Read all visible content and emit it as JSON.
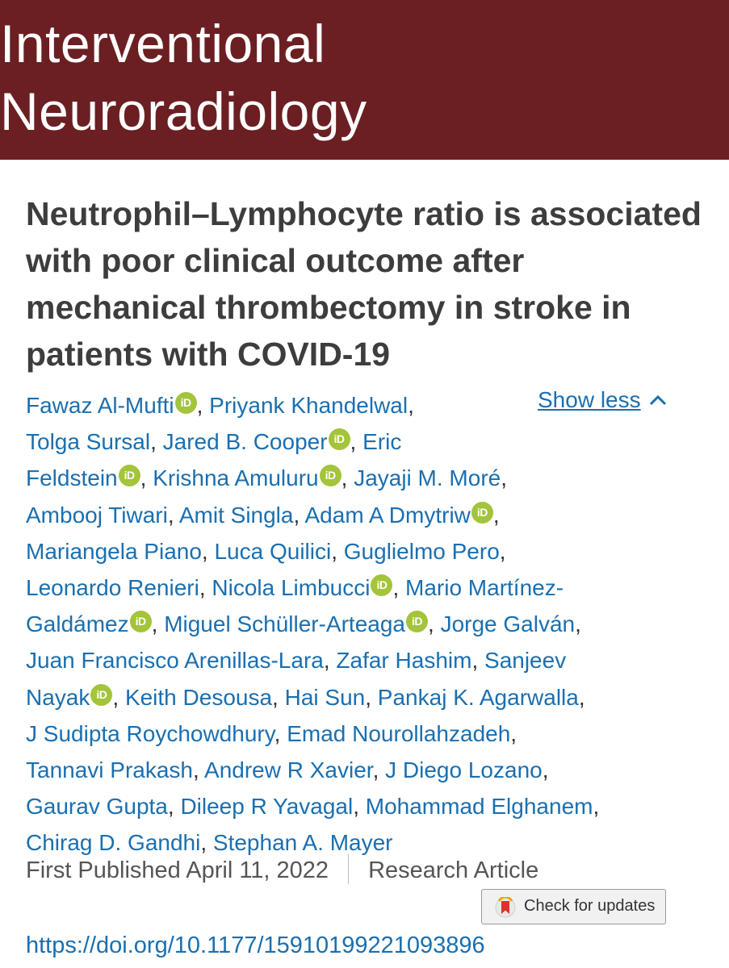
{
  "journal": {
    "title_line1": "Interventional",
    "title_line2": "Neuroradiology"
  },
  "article": {
    "title": "Neutrophil–Lymphocyte ratio is associated with poor clinical outcome after mechanical thrombectomy in stroke in patients with COVID-19",
    "published": "First Published April 11, 2022",
    "type": "Research Article",
    "doi": "https://doi.org/10.1177/15910199221093896"
  },
  "authors_toggle": {
    "label": "Show less",
    "icon": "chevron-up-icon"
  },
  "orcid_badge": "iD",
  "authors": [
    [
      "Fawaz Al-Mufti"
    ],
    [
      "Priyank Khandelwal"
    ],
    [
      "Tolga Sursal"
    ],
    [
      "Jared B. Cooper"
    ],
    [
      "Eric Feldstein"
    ],
    [
      "Krishna Amuluru"
    ],
    [
      "Jayaji M. Moré"
    ],
    [
      "Ambooj Tiwari"
    ],
    [
      "Amit Singla"
    ],
    [
      "Adam A Dmytriw"
    ],
    [
      "Mariangela Piano"
    ],
    [
      "Luca Quilici"
    ],
    [
      "Guglielmo Pero"
    ],
    [
      "Leonardo Renieri"
    ],
    [
      "Nicola Limbucci"
    ],
    [
      "Mario Martínez-Galdámez"
    ],
    [
      "Miguel Schüller-Arteaga"
    ],
    [
      "Jorge Galván"
    ],
    [
      "Juan Francisco Arenillas-Lara"
    ],
    [
      "Zafar Hashim"
    ],
    [
      "Sanjeev Nayak"
    ],
    [
      "Keith Desousa"
    ],
    [
      "Hai Sun"
    ],
    [
      "Pankaj K. Agarwalla"
    ],
    [
      "J Sudipta Roychowdhury"
    ],
    [
      "Emad Nourollahzadeh"
    ],
    [
      "Tannavi Prakash"
    ],
    [
      "Andrew R Xavier"
    ],
    [
      "J Diego Lozano"
    ],
    [
      "Gaurav Gupta"
    ],
    [
      "Dileep R Yavagal"
    ],
    [
      "Mohammad Elghanem"
    ],
    [
      "Chirag D. Gandhi"
    ],
    [
      "Stephan A. Mayer"
    ]
  ],
  "author_lines": [
    [
      {
        "t": "Fawaz Al-Mufti",
        "o": true
      },
      {
        "s": ", "
      },
      {
        "t": "Priyank Khandelwal"
      },
      {
        "s": ","
      }
    ],
    [
      {
        "t": "Tolga Sursal"
      },
      {
        "s": ", "
      },
      {
        "t": "Jared B. Cooper",
        "o": true
      },
      {
        "s": ", "
      },
      {
        "t": "Eric"
      }
    ],
    [
      {
        "t": "Feldstein",
        "o": true
      },
      {
        "s": ", "
      },
      {
        "t": "Krishna Amuluru",
        "o": true
      },
      {
        "s": ", "
      },
      {
        "t": "Jayaji M. Moré"
      },
      {
        "s": ","
      }
    ],
    [
      {
        "t": "Ambooj Tiwari"
      },
      {
        "s": ", "
      },
      {
        "t": "Amit Singla"
      },
      {
        "s": ", "
      },
      {
        "t": "Adam A Dmytriw",
        "o": true
      },
      {
        "s": ","
      }
    ],
    [
      {
        "t": "Mariangela Piano"
      },
      {
        "s": ", "
      },
      {
        "t": "Luca Quilici"
      },
      {
        "s": ", "
      },
      {
        "t": "Guglielmo Pero"
      },
      {
        "s": ","
      }
    ],
    [
      {
        "t": "Leonardo Renieri"
      },
      {
        "s": ", "
      },
      {
        "t": "Nicola Limbucci",
        "o": true
      },
      {
        "s": ", "
      },
      {
        "t": "Mario Martínez-"
      }
    ],
    [
      {
        "t": "Galdámez",
        "o": true
      },
      {
        "s": ", "
      },
      {
        "t": "Miguel Schüller-Arteaga",
        "o": true
      },
      {
        "s": ", "
      },
      {
        "t": "Jorge Galván"
      },
      {
        "s": ","
      }
    ],
    [
      {
        "t": "Juan Francisco Arenillas-Lara"
      },
      {
        "s": ", "
      },
      {
        "t": "Zafar Hashim"
      },
      {
        "s": ", "
      },
      {
        "t": "Sanjeev"
      }
    ],
    [
      {
        "t": "Nayak",
        "o": true
      },
      {
        "s": ", "
      },
      {
        "t": "Keith Desousa"
      },
      {
        "s": ", "
      },
      {
        "t": "Hai Sun"
      },
      {
        "s": ", "
      },
      {
        "t": "Pankaj K. Agarwalla"
      },
      {
        "s": ","
      }
    ],
    [
      {
        "t": "J Sudipta Roychowdhury"
      },
      {
        "s": ", "
      },
      {
        "t": "Emad Nourollahzadeh"
      },
      {
        "s": ","
      }
    ],
    [
      {
        "t": "Tannavi Prakash"
      },
      {
        "s": ", "
      },
      {
        "t": "Andrew R Xavier"
      },
      {
        "s": ", "
      },
      {
        "t": "J Diego Lozano"
      },
      {
        "s": ","
      }
    ],
    [
      {
        "t": "Gaurav Gupta"
      },
      {
        "s": ", "
      },
      {
        "t": "Dileep R Yavagal"
      },
      {
        "s": ", "
      },
      {
        "t": "Mohammad Elghanem"
      },
      {
        "s": ","
      }
    ],
    [
      {
        "t": "Chirag D. Gandhi"
      },
      {
        "s": ", "
      },
      {
        "t": "Stephan A. Mayer"
      }
    ]
  ],
  "check_updates": {
    "label": "Check for updates",
    "icon": "crossmark-bookmark-icon"
  },
  "colors": {
    "banner": "#6b1f22",
    "link": "#1a6fb0",
    "orcid": "#a3c43b",
    "title": "#3d3d3d"
  }
}
